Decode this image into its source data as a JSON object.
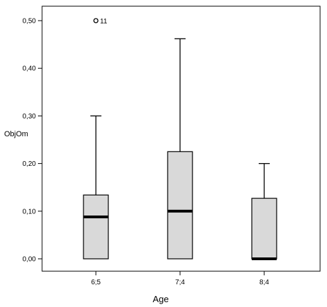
{
  "chart_data": {
    "type": "boxplot",
    "title": "",
    "xlabel": "Age",
    "ylabel": "ObjOm",
    "ylim": [
      0.0,
      0.52
    ],
    "yticks": [
      0.0,
      0.1,
      0.2,
      0.3,
      0.4,
      0.5
    ],
    "ytick_labels": [
      "0,00",
      "0,10",
      "0,20",
      "0,30",
      "0,40",
      "0,50"
    ],
    "categories": [
      "6;5",
      "7;4",
      "8;4"
    ],
    "boxes": [
      {
        "category": "6;5",
        "whisker_low": 0.0,
        "q1": 0.0,
        "median": 0.088,
        "q3": 0.134,
        "whisker_high": 0.3,
        "outliers": [
          {
            "value": 0.5,
            "label": "11"
          }
        ]
      },
      {
        "category": "7;4",
        "whisker_low": 0.0,
        "q1": 0.0,
        "median": 0.1,
        "q3": 0.225,
        "whisker_high": 0.462,
        "outliers": []
      },
      {
        "category": "8;4",
        "whisker_low": 0.0,
        "q1": 0.0,
        "median": 0.0,
        "q3": 0.127,
        "whisker_high": 0.2,
        "outliers": []
      }
    ],
    "colors": {
      "box_fill": "#d9d9d9",
      "stroke": "#000000"
    },
    "grid": false,
    "legend": "none"
  }
}
